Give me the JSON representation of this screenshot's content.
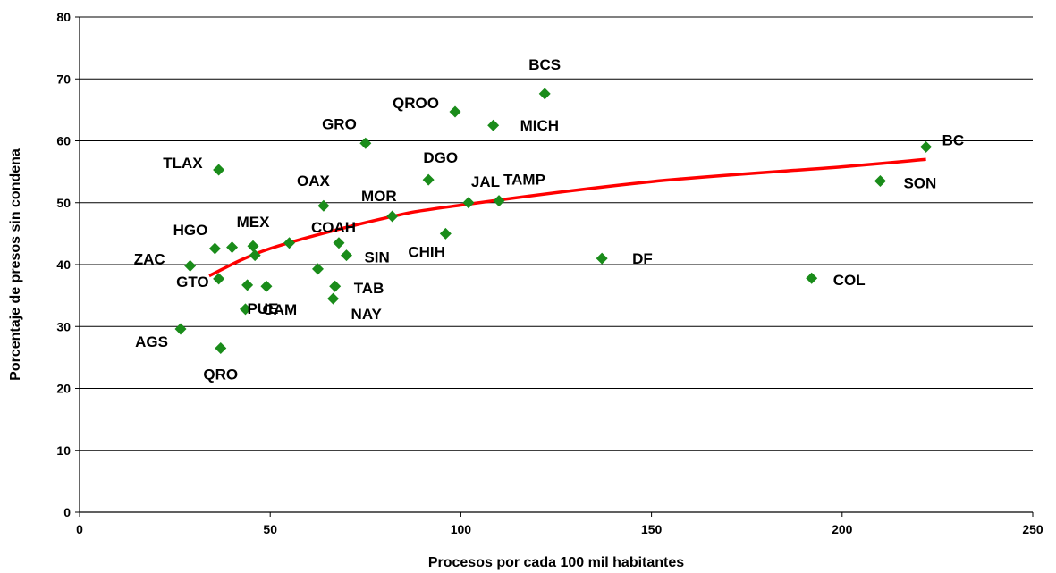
{
  "chart_data": {
    "type": "scatter",
    "xlabel": "Procesos por cada 100 mil habitantes",
    "ylabel": "Porcentaje de presos sin condena",
    "xlim": [
      0,
      250
    ],
    "ylim": [
      0,
      80
    ],
    "xticks": [
      "0",
      "50",
      "100",
      "150",
      "200",
      "250"
    ],
    "yticks": [
      "0",
      "10",
      "20",
      "30",
      "40",
      "50",
      "60",
      "70",
      "80"
    ],
    "grid": "horizontal",
    "marker": "diamond",
    "point_color": "#1a8c1a",
    "trend_color": "#ff0000",
    "trend": {
      "type": "logarithmic",
      "x_range": [
        34,
        222
      ],
      "points": [
        [
          34,
          38.2
        ],
        [
          50,
          42.6
        ],
        [
          80,
          47.5
        ],
        [
          100,
          49.6
        ],
        [
          150,
          53.4
        ],
        [
          200,
          55.8
        ],
        [
          222,
          57.0
        ]
      ]
    },
    "points": [
      {
        "label": "BC",
        "x": 222,
        "y": 59
      },
      {
        "label": "SON",
        "x": 210,
        "y": 53.5
      },
      {
        "label": "COL",
        "x": 192,
        "y": 37.8
      },
      {
        "label": "DF",
        "x": 137,
        "y": 41
      },
      {
        "label": "BCS",
        "x": 122,
        "y": 67.6
      },
      {
        "label": "MICH",
        "x": 108.5,
        "y": 62.5
      },
      {
        "label": "QROO",
        "x": 98.5,
        "y": 64.7
      },
      {
        "label": "TAMP",
        "x": 110,
        "y": 50.3
      },
      {
        "label": "JAL",
        "x": 102,
        "y": 50
      },
      {
        "label": "DGO",
        "x": 91.5,
        "y": 53.7
      },
      {
        "label": "CHIH",
        "x": 96,
        "y": 45
      },
      {
        "label": "MOR",
        "x": 82,
        "y": 47.8
      },
      {
        "label": "GRO",
        "x": 75,
        "y": 59.6
      },
      {
        "label": "OAX",
        "x": 64,
        "y": 49.5
      },
      {
        "label": "COAH",
        "x": 68,
        "y": 43.5
      },
      {
        "label": "SIN",
        "x": 70,
        "y": 41.5
      },
      {
        "label": "TAB",
        "x": 67,
        "y": 36.5
      },
      {
        "label": "NAY",
        "x": 66.5,
        "y": 34.5
      },
      {
        "label": "MEX",
        "x": 45.5,
        "y": 43
      },
      {
        "label": "HGO",
        "x": 35.5,
        "y": 42.6
      },
      {
        "label": "TLAX",
        "x": 36.5,
        "y": 55.3
      },
      {
        "label": "ZAC",
        "x": 29,
        "y": 39.8
      },
      {
        "label": "GTO",
        "x": 36.5,
        "y": 37.7
      },
      {
        "label": "CAM",
        "x": 43.5,
        "y": 32.8
      },
      {
        "label": "PUE",
        "x": 49,
        "y": 36.5
      },
      {
        "label": "AGS",
        "x": 26.5,
        "y": 29.6
      },
      {
        "label": "QRO",
        "x": 37,
        "y": 26.5
      }
    ],
    "unlabeled_points": [
      {
        "x": 40,
        "y": 42.8
      },
      {
        "x": 46,
        "y": 41.5
      },
      {
        "x": 55,
        "y": 43.5
      },
      {
        "x": 44,
        "y": 36.7
      },
      {
        "x": 62.5,
        "y": 39.3
      }
    ]
  }
}
